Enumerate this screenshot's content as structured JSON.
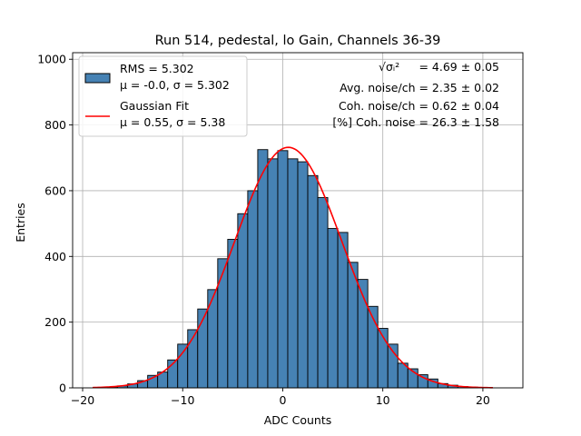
{
  "chart_data": {
    "type": "bar",
    "title": "Run 514, pedestal, lo Gain, Channels 36-39",
    "xlabel": "ADC Counts",
    "ylabel": "Entries",
    "xlim": [
      -21,
      24
    ],
    "ylim": [
      0,
      1020
    ],
    "xticks": [
      -20,
      -10,
      0,
      10,
      20
    ],
    "yticks": [
      0,
      200,
      400,
      600,
      800,
      1000
    ],
    "grid": true,
    "legend_position": "top-left",
    "bin_width": 1,
    "bins": [
      {
        "x": -17,
        "value": 3
      },
      {
        "x": -16,
        "value": 6
      },
      {
        "x": -15,
        "value": 12
      },
      {
        "x": -14,
        "value": 22
      },
      {
        "x": -13,
        "value": 38
      },
      {
        "x": -12,
        "value": 48
      },
      {
        "x": -11,
        "value": 85
      },
      {
        "x": -10,
        "value": 133
      },
      {
        "x": -9,
        "value": 177
      },
      {
        "x": -8,
        "value": 240
      },
      {
        "x": -7,
        "value": 299
      },
      {
        "x": -6,
        "value": 393
      },
      {
        "x": -5,
        "value": 452
      },
      {
        "x": -4,
        "value": 530
      },
      {
        "x": -3,
        "value": 600
      },
      {
        "x": -2,
        "value": 725
      },
      {
        "x": -1,
        "value": 697
      },
      {
        "x": 0,
        "value": 722
      },
      {
        "x": 1,
        "value": 697
      },
      {
        "x": 2,
        "value": 688
      },
      {
        "x": 3,
        "value": 646
      },
      {
        "x": 4,
        "value": 579
      },
      {
        "x": 5,
        "value": 485
      },
      {
        "x": 6,
        "value": 473
      },
      {
        "x": 7,
        "value": 382
      },
      {
        "x": 8,
        "value": 330
      },
      {
        "x": 9,
        "value": 248
      },
      {
        "x": 10,
        "value": 181
      },
      {
        "x": 11,
        "value": 133
      },
      {
        "x": 12,
        "value": 75
      },
      {
        "x": 13,
        "value": 58
      },
      {
        "x": 14,
        "value": 40
      },
      {
        "x": 15,
        "value": 27
      },
      {
        "x": 16,
        "value": 13
      },
      {
        "x": 17,
        "value": 8
      },
      {
        "x": 18,
        "value": 4
      },
      {
        "x": 19,
        "value": 2
      }
    ],
    "fit": {
      "label": "Gaussian Fit",
      "mu": 0.55,
      "sigma": 5.38,
      "amplitude": 732,
      "range": [
        -19,
        21
      ]
    },
    "legend": [
      {
        "line1": "RMS = 5.302",
        "line2": "μ = -0.0, σ = 5.302",
        "kind": "patch"
      },
      {
        "line1": "Gaussian Fit",
        "line2": "μ = 0.55, σ = 5.38",
        "kind": "line"
      }
    ],
    "annotations": [
      {
        "prefix": "√σᵢ²",
        "text": "= 4.69 ± 0.05"
      },
      {
        "prefix": "",
        "text": "Avg. noise/ch = 2.35 ± 0.02"
      },
      {
        "prefix": "",
        "text": "Coh. noise/ch = 0.62 ± 0.04"
      },
      {
        "prefix": "",
        "text": "[%] Coh. noise = 26.3 ± 1.58"
      }
    ],
    "colors": {
      "bar_fill": "#4682b4",
      "bar_edge": "#000000",
      "fit_line": "#ff0000",
      "grid": "#b0b0b0"
    }
  }
}
